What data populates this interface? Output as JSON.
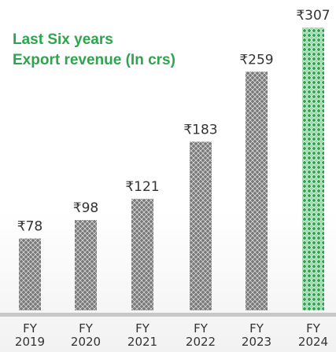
{
  "chart_data": {
    "type": "bar",
    "title": "Last Six years",
    "subtitle": "Export revenue (In crs)",
    "categories": [
      "FY 2019",
      "FY 2020",
      "FY 2021",
      "FY 2022",
      "FY 2023",
      "FY 2024"
    ],
    "values": [
      78,
      98,
      121,
      183,
      259,
      307
    ],
    "value_labels": [
      "₹78",
      "₹98",
      "₹121",
      "₹183",
      "₹259",
      "₹307"
    ],
    "colors": [
      "#7a7a7a",
      "#7a7a7a",
      "#7a7a7a",
      "#7a7a7a",
      "#7a7a7a",
      "#2ea44f"
    ]
  }
}
